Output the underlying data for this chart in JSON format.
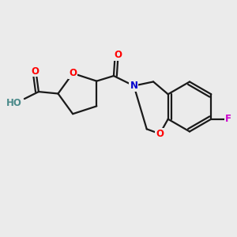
{
  "bg_color": "#ebebeb",
  "bond_color": "#1a1a1a",
  "bond_width": 1.6,
  "atom_colors": {
    "O": "#ff0000",
    "N": "#0000cd",
    "F": "#cc00cc",
    "H": "#4a8a8a",
    "C": "#1a1a1a"
  },
  "font_size": 8.5
}
